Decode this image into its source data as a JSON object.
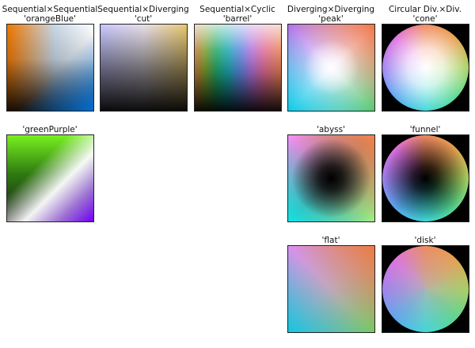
{
  "panels": [
    {
      "id": "orangeBlue",
      "title_line1": "Sequential×Sequential",
      "title_line2": "'orangeBlue'"
    },
    {
      "id": "cut",
      "title_line1": "Sequential×Diverging",
      "title_line2": "'cut'"
    },
    {
      "id": "barrel",
      "title_line1": "Sequential×Cyclic",
      "title_line2": "'barrel'"
    },
    {
      "id": "peak",
      "title_line1": "Diverging×Diverging",
      "title_line2": "'peak'"
    },
    {
      "id": "cone",
      "title_line1": "Circular Div.×Div.",
      "title_line2": "'cone'"
    },
    {
      "id": "greenPurple",
      "title_line1": "'greenPurple'"
    },
    {
      "id": "abyss",
      "title_line1": "'abyss'"
    },
    {
      "id": "funnel",
      "title_line1": "'funnel'"
    },
    {
      "id": "flat",
      "title_line1": "'flat'"
    },
    {
      "id": "disk",
      "title_line1": "'disk'"
    }
  ],
  "colors": {
    "background": "#ffffff",
    "frame": "#222222",
    "circle_background": "#000000"
  }
}
